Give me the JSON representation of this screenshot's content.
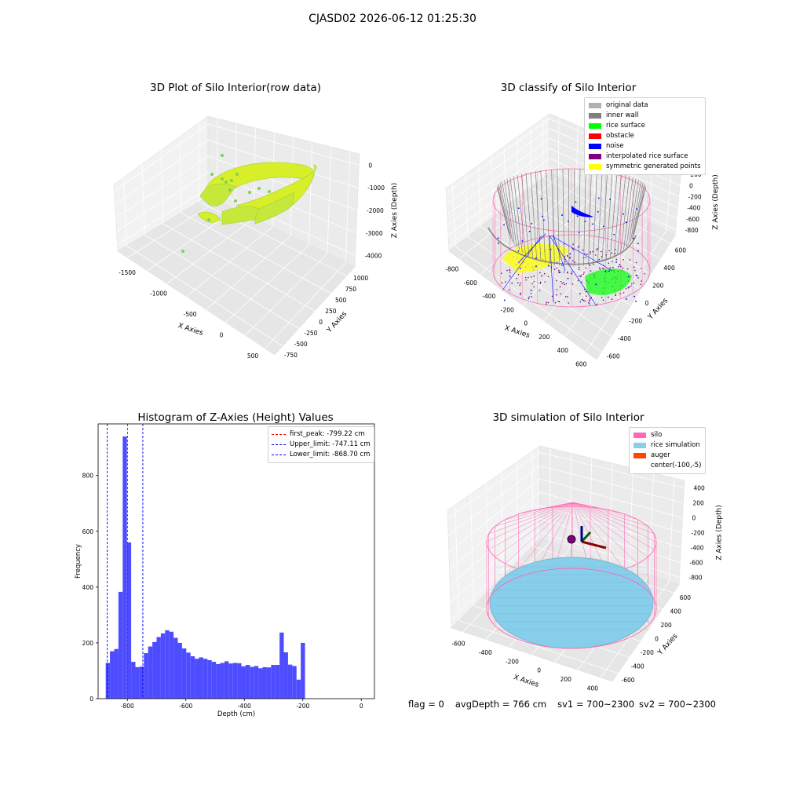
{
  "figure_title": "CJASD02 2026-06-12 01:25:30",
  "footer": {
    "flag": "flag = 0",
    "avg_depth": "avgDepth = 766 cm",
    "sv1": "sv1 = 700~2300",
    "sv2": "sv2 = 700~2300"
  },
  "colors": {
    "original_data": "#b0b0b0",
    "inner_wall": "#808080",
    "rice_surface": "#00ff00",
    "obstacle": "#ff0000",
    "noise": "#0000ff",
    "interpolated_rice_surface": "#800080",
    "symmetric_generated_points": "#ffff00",
    "silo": "#ff69b4",
    "rice_simulation": "#87ceeb",
    "auger": "#ff4500",
    "hist_bar": "#4d4dff"
  },
  "chart_data": [
    {
      "type": "scatter",
      "panel": "raw",
      "title": "3D Plot of Silo Interior(row data)",
      "xlabel": "X Axies",
      "ylabel": "Y Axies",
      "zlabel": "Z Axies (Depth)",
      "xticks": [
        "-1500",
        "-1000",
        "-500",
        "0",
        "500"
      ],
      "yticks": [
        "-750",
        "-500",
        "-250",
        "0",
        "250",
        "500",
        "750",
        "1000"
      ],
      "zticks": [
        "0",
        "-1000",
        "-2000",
        "-3000",
        "-4000"
      ],
      "xlim": [
        -1750,
        750
      ],
      "ylim": [
        -850,
        1050
      ],
      "zlim": [
        -4300,
        200
      ],
      "grid": true
    },
    {
      "type": "scatter",
      "panel": "classify",
      "title": "3D classify of Silo Interior",
      "xlabel": "X Axies",
      "ylabel": "Y Axies",
      "zlabel": "Z Axies (Depth)",
      "xticks": [
        "-800",
        "-600",
        "-400",
        "-200",
        "0",
        "200",
        "400",
        "600"
      ],
      "yticks": [
        "-600",
        "-400",
        "-200",
        "0",
        "200",
        "400",
        "600"
      ],
      "zticks": [
        "200",
        "0",
        "-200",
        "-400",
        "-600",
        "-800"
      ],
      "legend": [
        "original data",
        "inner wall",
        "rice surface",
        "obstacle",
        "noise",
        "interpolated rice surface",
        "symmetric generated points"
      ],
      "legend_position": "top-right",
      "grid": true
    },
    {
      "type": "bar",
      "panel": "histogram",
      "title": "Histogram of Z-Axies (Height) Values",
      "xlabel": "Depth (cm)",
      "ylabel": "Frequency",
      "xlim": [
        -900,
        45
      ],
      "ylim": [
        0,
        985
      ],
      "xticks": [
        -800,
        -600,
        -400,
        -200,
        0
      ],
      "yticks": [
        0,
        200,
        400,
        600,
        800
      ],
      "bin_start": -874,
      "bin_width": 14.5,
      "values": [
        128,
        170,
        178,
        383,
        940,
        560,
        132,
        113,
        115,
        163,
        187,
        203,
        221,
        234,
        245,
        240,
        218,
        200,
        180,
        165,
        152,
        143,
        148,
        143,
        138,
        132,
        124,
        128,
        134,
        126,
        128,
        127,
        116,
        121,
        114,
        117,
        109,
        113,
        112,
        121,
        121,
        237,
        166,
        122,
        117,
        68,
        200
      ],
      "lines": [
        {
          "label": "first_peak: -799.22 cm",
          "x": -799.22,
          "color": "#ff0000"
        },
        {
          "label": "Upper_limit: -747.11 cm",
          "x": -747.11,
          "color": "#0000ff"
        },
        {
          "label": "Lower_limit: -868.70 cm",
          "x": -868.7,
          "color": "#0000ff"
        }
      ],
      "legend_position": "top-right"
    },
    {
      "type": "scatter",
      "panel": "simulation",
      "title": "3D simulation of Silo Interior",
      "xlabel": "X Axies",
      "ylabel": "Y Axies",
      "zlabel": "Z Axies (Depth)",
      "xticks": [
        "-600",
        "-400",
        "-200",
        "0",
        "200",
        "400"
      ],
      "yticks": [
        "-600",
        "-400",
        "-200",
        "0",
        "200",
        "400",
        "600"
      ],
      "zticks": [
        "400",
        "200",
        "0",
        "-200",
        "-400",
        "-600",
        "-800"
      ],
      "legend": [
        "silo",
        "rice simulation",
        "auger",
        "center(-100,-5)"
      ],
      "legend_position": "top-right",
      "grid": true
    }
  ]
}
